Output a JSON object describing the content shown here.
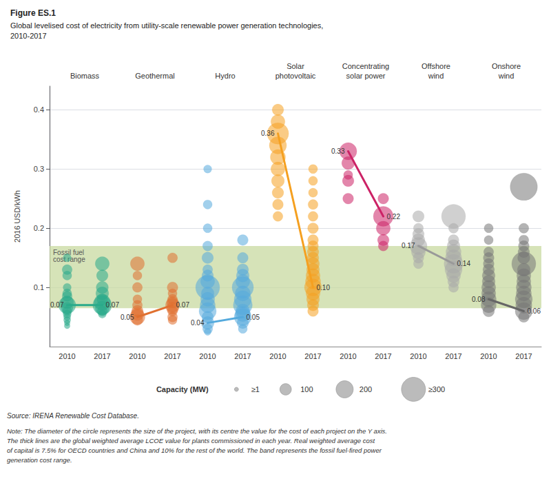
{
  "chart_data": {
    "type": "bubble",
    "title": "Figure ES.1",
    "subtitle": "Global levelised cost of electricity from utility-scale renewable power generation technologies,\n2010-2017",
    "ylabel": "2016 USD/kWh",
    "ylim": [
      0.0,
      0.44
    ],
    "yticks": [
      0.1,
      0.2,
      0.3,
      0.4
    ],
    "grid": true,
    "categories": [
      "2010",
      "2017",
      "2010",
      "2017",
      "2010",
      "2017",
      "2010",
      "2017",
      "2010",
      "2017",
      "2010",
      "2017",
      "2010",
      "2017"
    ],
    "band": {
      "low": 0.065,
      "high": 0.17,
      "label": "Fossil fuel\ncost range",
      "color": "#c8d9a0"
    },
    "size_legend": {
      "title": "Capacity (MW)",
      "entries": [
        {
          "label": "≥1",
          "size": 1
        },
        {
          "label": "100",
          "size": 8
        },
        {
          "label": "200",
          "size": 18
        },
        {
          "label": "≥300",
          "size": 35
        }
      ]
    },
    "source": "Source: IRENA Renewable Cost Database.",
    "note": "Note: The diameter of the circle represents the size of the project, with its centre the value for the cost of each project on the Y axis.\nThe thick lines are the global weighted average LCOE value for plants commissioned in each year. Real weighted average cost\nof capital is 7.5% for OECD countries and China and 10% for the rest of the world. The band represents the fossil fuel-fired power\ngeneration cost range.",
    "series": [
      {
        "name": "Biomass",
        "color": "#2aaa8a",
        "average_color": "#2aaa8a",
        "values": [
          [
            0.07,
            0.075,
            0.065,
            0.085,
            0.06,
            0.09,
            0.055,
            0.1,
            0.12,
            0.13,
            0.15,
            0.05,
            0.045,
            0.04,
            0.035
          ],
          [
            0.07,
            0.075,
            0.065,
            0.09,
            0.1,
            0.12,
            0.14,
            0.08,
            0.06,
            0.055
          ]
        ],
        "sizes": [
          [
            18,
            10,
            8,
            6,
            5,
            5,
            4,
            4,
            5,
            6,
            4,
            3,
            3,
            2,
            2
          ],
          [
            22,
            16,
            12,
            10,
            9,
            8,
            12,
            7,
            6,
            4
          ]
        ],
        "average": [
          0.07,
          0.07
        ],
        "average_labels": [
          "0.07",
          "0.07"
        ]
      },
      {
        "name": "Geothermal",
        "color": "#e07030",
        "average_color": "#e07030",
        "values": [
          [
            0.05,
            0.055,
            0.06,
            0.045,
            0.07,
            0.08,
            0.1,
            0.12,
            0.14
          ],
          [
            0.07,
            0.065,
            0.075,
            0.06,
            0.08,
            0.09,
            0.05,
            0.1,
            0.045,
            0.15
          ]
        ],
        "sizes": [
          [
            14,
            10,
            8,
            7,
            6,
            5,
            6,
            5,
            12
          ],
          [
            12,
            9,
            8,
            6,
            6,
            5,
            6,
            7,
            5,
            6
          ]
        ],
        "average": [
          0.05,
          0.07
        ],
        "average_labels": [
          "0.05",
          "0.07"
        ]
      },
      {
        "name": "Hydro",
        "color": "#55aadd",
        "average_color": "#55aadd",
        "values": [
          [
            0.04,
            0.05,
            0.06,
            0.07,
            0.08,
            0.09,
            0.1,
            0.11,
            0.12,
            0.13,
            0.15,
            0.17,
            0.2,
            0.24,
            0.3,
            0.03,
            0.025
          ],
          [
            0.05,
            0.055,
            0.06,
            0.07,
            0.08,
            0.09,
            0.1,
            0.11,
            0.12,
            0.13,
            0.15,
            0.18,
            0.04,
            0.03
          ]
        ],
        "sizes": [
          [
            10,
            8,
            18,
            14,
            12,
            10,
            35,
            12,
            8,
            6,
            8,
            6,
            5,
            5,
            4,
            6,
            3
          ],
          [
            18,
            14,
            12,
            22,
            18,
            14,
            28,
            12,
            10,
            8,
            7,
            7,
            8,
            5
          ]
        ],
        "average": [
          0.04,
          0.05
        ],
        "average_labels": [
          "0.04",
          "0.05"
        ]
      },
      {
        "name": "Solar\nphotovoltaic",
        "color": "#f5a020",
        "average_color": "#f5a020",
        "values": [
          [
            0.36,
            0.38,
            0.4,
            0.34,
            0.32,
            0.3,
            0.28,
            0.26,
            0.24,
            0.22
          ],
          [
            0.1,
            0.11,
            0.09,
            0.12,
            0.13,
            0.14,
            0.15,
            0.16,
            0.17,
            0.18,
            0.2,
            0.22,
            0.24,
            0.26,
            0.28,
            0.3,
            0.08,
            0.07,
            0.06
          ]
        ],
        "sizes": [
          [
            28,
            12,
            8,
            18,
            14,
            12,
            10,
            8,
            7,
            6
          ],
          [
            18,
            14,
            12,
            12,
            10,
            10,
            8,
            8,
            7,
            7,
            7,
            6,
            6,
            5,
            5,
            5,
            10,
            8,
            7
          ]
        ],
        "average": [
          0.36,
          0.1
        ],
        "average_labels": [
          "0.36",
          "0.10"
        ]
      },
      {
        "name": "Concentrating\nsolar power",
        "color": "#cc2266",
        "average_color": "#cc2266",
        "values": [
          [
            0.33,
            0.29,
            0.31,
            0.28,
            0.25
          ],
          [
            0.22,
            0.2,
            0.18,
            0.25,
            0.17
          ]
        ],
        "sizes": [
          [
            18,
            5,
            10,
            8,
            7
          ],
          [
            24,
            12,
            8,
            7,
            6
          ]
        ],
        "average": [
          0.33,
          0.22
        ],
        "average_labels": [
          "0.33",
          "0.22"
        ]
      },
      {
        "name": "Offshore\nwind",
        "color": "#aaaaaa",
        "average_color": "#999999",
        "values": [
          [
            0.17,
            0.16,
            0.18,
            0.19,
            0.15,
            0.2,
            0.22,
            0.14
          ],
          [
            0.14,
            0.13,
            0.15,
            0.16,
            0.12,
            0.17,
            0.11,
            0.18,
            0.2,
            0.22,
            0.1
          ]
        ],
        "sizes": [
          [
            18,
            12,
            10,
            8,
            7,
            6,
            8,
            6
          ],
          [
            22,
            18,
            16,
            14,
            12,
            10,
            8,
            7,
            6,
            35,
            6
          ]
        ],
        "average": [
          0.17,
          0.14
        ],
        "average_labels": [
          "0.17",
          "0.14"
        ]
      },
      {
        "name": "Onshore\nwind",
        "color": "#777777",
        "average_color": "#666666",
        "values": [
          [
            0.08,
            0.09,
            0.07,
            0.1,
            0.11,
            0.12,
            0.13,
            0.14,
            0.15,
            0.16,
            0.06,
            0.18,
            0.2
          ],
          [
            0.06,
            0.07,
            0.08,
            0.09,
            0.1,
            0.11,
            0.12,
            0.13,
            0.14,
            0.15,
            0.16,
            0.17,
            0.05,
            0.18,
            0.2,
            0.27
          ]
        ],
        "sizes": [
          [
            14,
            12,
            14,
            12,
            10,
            10,
            8,
            7,
            7,
            6,
            8,
            5,
            5
          ],
          [
            18,
            16,
            18,
            14,
            14,
            12,
            12,
            10,
            35,
            9,
            8,
            7,
            7,
            6,
            6,
            45
          ]
        ],
        "average": [
          0.08,
          0.06
        ],
        "average_labels": [
          "0.08",
          "0.06"
        ]
      }
    ]
  }
}
